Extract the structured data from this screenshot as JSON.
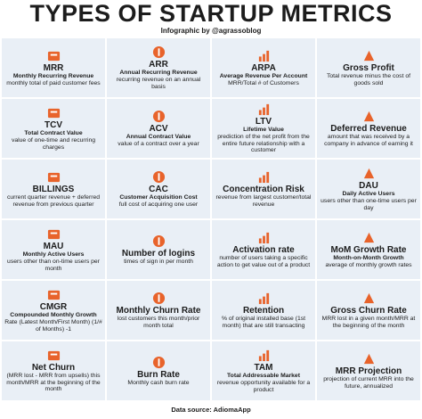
{
  "header": {
    "title": "TYPES OF STARTUP METRICS",
    "subtitle": "Infographic by @agrassoblog"
  },
  "cells": [
    {
      "title": "MRR",
      "subtitle": "Monthly Recurring Revenue",
      "description": "monthly total of paid customer fees"
    },
    {
      "title": "ARR",
      "subtitle": "Annual Recurring Revenue",
      "description": "recurring revenue on an annual basis"
    },
    {
      "title": "ARPA",
      "subtitle": "Average Revenue Per Account",
      "description": "MRR/Total # of Customers"
    },
    {
      "title": "Gross Profit",
      "description": "Total revenue minus the cost of goods sold"
    },
    {
      "title": "TCV",
      "subtitle": "Total Contract Value",
      "description": "value of one-time and recurring charges"
    },
    {
      "title": "ACV",
      "subtitle": "Annual Contract Value",
      "description": "value of a contract over a year"
    },
    {
      "title": "LTV",
      "subtitle": "Lifetime Value",
      "description": "prediction of the net profit from the entire future relationship with a customer"
    },
    {
      "title": "Deferred Revenue",
      "description": "amount that was received by a company in advance of earning it"
    },
    {
      "title": "BILLINGS",
      "description": "current quarter revenue + deferred revenue from previous quarter"
    },
    {
      "title": "CAC",
      "subtitle": "Customer Acquisition Cost",
      "description": "full cost of acquiring one user"
    },
    {
      "title": "Concentration Risk",
      "description": "revenue from largest customer/total revenue"
    },
    {
      "title": "DAU",
      "subtitle": "Daily Active Users",
      "description": "users other than one-time users per day"
    },
    {
      "title": "MAU",
      "subtitle": "Monthly Active Users",
      "description": "users other than on-time users per month"
    },
    {
      "title": "Number of logins",
      "description": "times of sign in per month"
    },
    {
      "title": "Activation rate",
      "description": "number of users taking a specific action to get value out of a product"
    },
    {
      "title": "MoM Growth Rate",
      "subtitle": "Month-on-Month Growth",
      "description": "average of monthly growth rates"
    },
    {
      "title": "CMGR",
      "subtitle": "Compounded Monthly Growth",
      "description": "Rate (Latest Month/First Month) (1/# of Months) -1"
    },
    {
      "title": "Monthly Churn Rate",
      "description": "lost customers this month/prior month total"
    },
    {
      "title": "Retention",
      "description": "% of original installed base (1st month) that are still transacting"
    },
    {
      "title": "Gross Churn Rate",
      "description": "MRR lost in a given month/MRR at the beginning of the month"
    },
    {
      "title": "Net Churn",
      "description": "(MRR lost - MRR from upsells) this month/MRR at the beginning of the month"
    },
    {
      "title": "Burn Rate",
      "description": "Monthly cash burn rate"
    },
    {
      "title": "TAM",
      "subtitle": "Total Addressable Market",
      "description": "revenue opportunity available for a product"
    },
    {
      "title": "MRR Projection",
      "description": "projection of current MRR into the future, annualized"
    }
  ],
  "footer": {
    "source": "Data source: AdiomaApp"
  }
}
